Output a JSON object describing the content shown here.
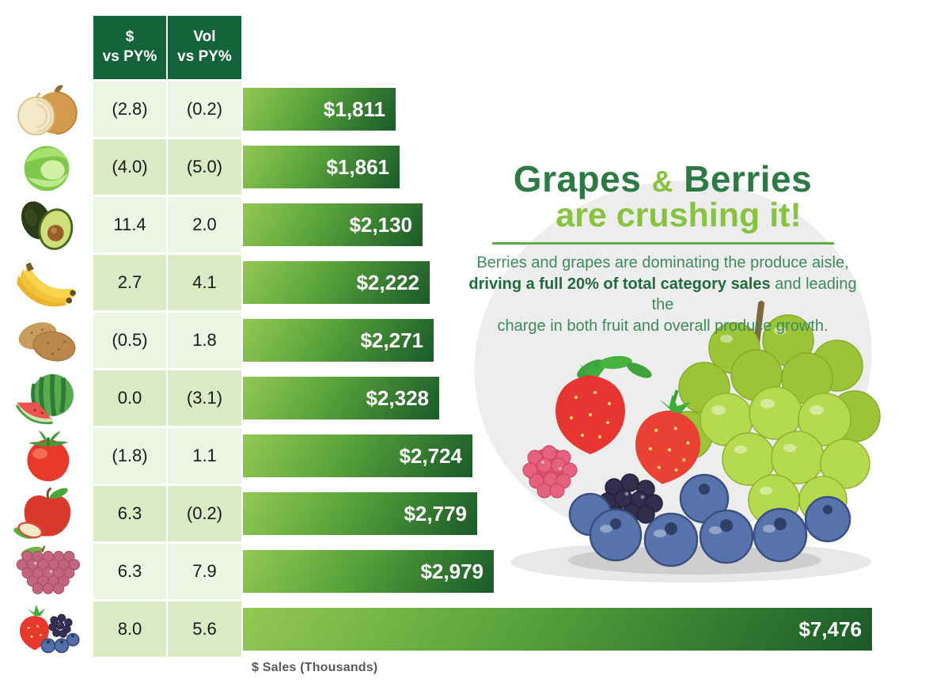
{
  "chart_data": {
    "type": "bar",
    "orientation": "horizontal",
    "title": "",
    "xlabel": "$ Sales (Thousands)",
    "ylabel": "",
    "categories": [
      "Onion",
      "Lettuce",
      "Avocado",
      "Bananas",
      "Potatoes",
      "Watermelon",
      "Tomato",
      "Apple",
      "Grapes",
      "Berries"
    ],
    "series": [
      {
        "name": "$ Sales (Thousands)",
        "values": [
          1811,
          1861,
          2130,
          2222,
          2271,
          2328,
          2724,
          2779,
          2979,
          7476
        ]
      },
      {
        "name": "$ vs PY%",
        "values": [
          -2.8,
          -4.0,
          11.4,
          2.7,
          -0.5,
          0.0,
          -1.8,
          6.3,
          6.3,
          8.0
        ]
      },
      {
        "name": "Vol vs PY%",
        "values": [
          -0.2,
          -5.0,
          2.0,
          4.1,
          1.8,
          -3.1,
          1.1,
          -0.2,
          7.9,
          5.6
        ]
      }
    ],
    "bar_value_labels": [
      "$1,811",
      "$1,861",
      "$2,130",
      "$2,222",
      "$2,271",
      "$2,328",
      "$2,724",
      "$2,779",
      "$2,979",
      "$7,476"
    ],
    "xlim": [
      0,
      7476
    ],
    "grid": false,
    "legend": false,
    "bar_color_gradient": [
      "#94c854",
      "#5aa43b",
      "#1b5a2a"
    ]
  },
  "table": {
    "header": {
      "col1": [
        "$",
        "vs PY%"
      ],
      "col2": [
        "Vol",
        "vs PY%"
      ]
    }
  },
  "rows": [
    {
      "item": "Onion",
      "dollar_vs_py": "(2.8)",
      "vol_vs_py": "(0.2)",
      "sales_label": "$1,811",
      "sales_value": 1811
    },
    {
      "item": "Lettuce",
      "dollar_vs_py": "(4.0)",
      "vol_vs_py": "(5.0)",
      "sales_label": "$1,861",
      "sales_value": 1861
    },
    {
      "item": "Avocado",
      "dollar_vs_py": "11.4",
      "vol_vs_py": "2.0",
      "sales_label": "$2,130",
      "sales_value": 2130
    },
    {
      "item": "Bananas",
      "dollar_vs_py": "2.7",
      "vol_vs_py": "4.1",
      "sales_label": "$2,222",
      "sales_value": 2222
    },
    {
      "item": "Potatoes",
      "dollar_vs_py": "(0.5)",
      "vol_vs_py": "1.8",
      "sales_label": "$2,271",
      "sales_value": 2271
    },
    {
      "item": "Watermelon",
      "dollar_vs_py": "0.0",
      "vol_vs_py": "(3.1)",
      "sales_label": "$2,328",
      "sales_value": 2328
    },
    {
      "item": "Tomato",
      "dollar_vs_py": "(1.8)",
      "vol_vs_py": "1.1",
      "sales_label": "$2,724",
      "sales_value": 2724
    },
    {
      "item": "Apple",
      "dollar_vs_py": "6.3",
      "vol_vs_py": "(0.2)",
      "sales_label": "$2,779",
      "sales_value": 2779
    },
    {
      "item": "Grapes",
      "dollar_vs_py": "6.3",
      "vol_vs_py": "7.9",
      "sales_label": "$2,979",
      "sales_value": 2979
    },
    {
      "item": "Berries",
      "dollar_vs_py": "8.0",
      "vol_vs_py": "5.6",
      "sales_label": "$7,476",
      "sales_value": 7476
    }
  ],
  "axis": {
    "xlabel": "$ Sales (Thousands)"
  },
  "headline": {
    "word1": "Grapes",
    "amp": "&",
    "word2": "Berries",
    "line2": "are crushing it!",
    "body_line1": "Berries and grapes are dominating the produce aisle,",
    "body_line2_bold": "driving a full 20% of total category sales",
    "body_line2_rest": " and leading the",
    "body_line3": "charge in both fruit and overall produce growth."
  },
  "colors": {
    "header_bg": "#15633a",
    "row_light": "#ecf4e3",
    "row_dark": "#d9eac5",
    "headline_dark": "#2d7a45",
    "headline_light": "#86c440",
    "body_green": "#3e8a5c",
    "body_bold_green": "#1f6b3d",
    "axis_label_gray": "#58595b",
    "blob_gray": "#ededed"
  }
}
